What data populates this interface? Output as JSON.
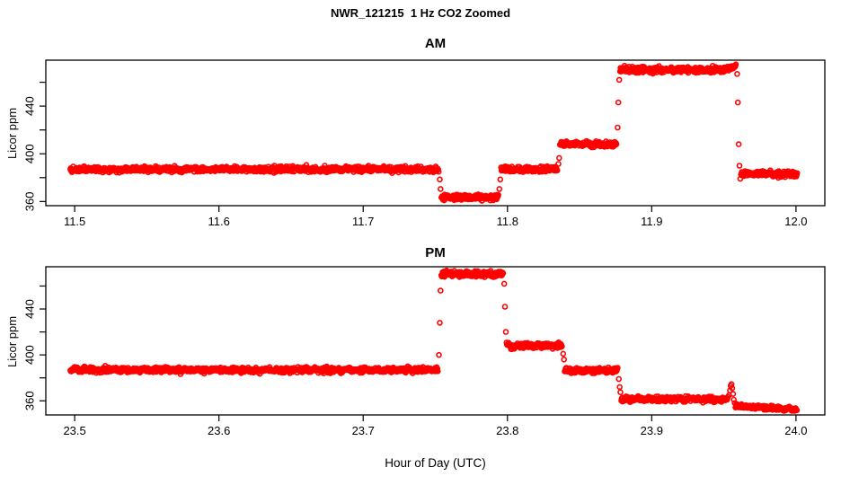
{
  "title": "NWR_121215  1 Hz CO2 Zoomed",
  "xlabel": "Hour of Day (UTC)",
  "colors": {
    "points": "#FF0000",
    "axis": "#000000",
    "text": "#000000",
    "background": "#FFFFFF"
  },
  "chart_data": [
    {
      "type": "scatter",
      "panel": "AM",
      "title": "AM",
      "ylabel": "Licor ppm",
      "marker": "open-circle",
      "sample_rate_hz": 1,
      "grid": false,
      "xlim": [
        11.48,
        12.02
      ],
      "ylim": [
        356.5,
        478.5
      ],
      "xticks": [
        11.5,
        11.6,
        11.7,
        11.8,
        11.9,
        12.0
      ],
      "xtick_labels": [
        "11.5",
        "11.6",
        "11.7",
        "11.8",
        "11.9",
        "12.0"
      ],
      "yticks": [
        360,
        380,
        400,
        420,
        440,
        460
      ],
      "ytick_labels": [
        "360",
        "",
        "400",
        "",
        "440",
        ""
      ],
      "segments": [
        {
          "x0": 11.497,
          "x1": 11.7525,
          "level": 387,
          "noise": 1.1
        },
        {
          "x0": 11.7542,
          "x1": 11.7939,
          "level": 363.5,
          "noise": 1.1
        },
        {
          "x0": 11.7956,
          "x1": 11.8347,
          "level": 387,
          "noise": 1.1
        },
        {
          "x0": 11.8364,
          "x1": 11.8758,
          "level": 408,
          "noise": 1.1
        },
        {
          "x0": 11.8781,
          "x1": 11.95,
          "level": 470.5,
          "noise": 1.25
        },
        {
          "x0": 11.95,
          "x1": 11.9586,
          "level": 470.5,
          "level_end": 473.5,
          "noise": 1.0
        },
        {
          "x0": 11.9619,
          "x1": 12.001,
          "level": 383,
          "noise": 1.1
        }
      ],
      "transition_points": [
        [
          11.7531,
          378.5
        ],
        [
          11.7536,
          370.5
        ],
        [
          11.7944,
          370.5
        ],
        [
          11.795,
          378.5
        ],
        [
          11.8353,
          391.5
        ],
        [
          11.8358,
          396.5
        ],
        [
          11.8764,
          422
        ],
        [
          11.8769,
          443
        ],
        [
          11.8775,
          462
        ],
        [
          11.9592,
          467
        ],
        [
          11.9597,
          443
        ],
        [
          11.9603,
          408
        ],
        [
          11.9608,
          390
        ],
        [
          11.9614,
          379
        ]
      ]
    },
    {
      "type": "scatter",
      "panel": "PM",
      "title": "PM",
      "ylabel": "Licor ppm",
      "marker": "open-circle",
      "sample_rate_hz": 1,
      "grid": false,
      "xlim": [
        23.48,
        24.02
      ],
      "ylim": [
        347.7,
        476.8
      ],
      "xticks": [
        23.5,
        23.6,
        23.7,
        23.8,
        23.9,
        24.0
      ],
      "xtick_labels": [
        "23.5",
        "23.6",
        "23.7",
        "23.8",
        "23.9",
        "24.0"
      ],
      "yticks": [
        360,
        380,
        400,
        420,
        440,
        460
      ],
      "ytick_labels": [
        "360",
        "",
        "400",
        "",
        "440",
        ""
      ],
      "segments": [
        {
          "x0": 23.497,
          "x1": 23.7519,
          "level": 387,
          "noise": 1.1
        },
        {
          "x0": 23.7542,
          "x1": 23.7972,
          "level": 470.5,
          "noise": 1.25
        },
        {
          "x0": 23.7994,
          "x1": 23.8381,
          "level": 408,
          "noise": 1.1
        },
        {
          "x0": 23.8397,
          "x1": 23.8767,
          "level": 386.5,
          "noise": 1.1
        },
        {
          "x0": 23.8789,
          "x1": 23.9531,
          "level": 361.5,
          "noise": 1.1
        },
        {
          "x0": 23.9581,
          "x1": 24.001,
          "level": 355.5,
          "level_end": 352.5,
          "noise": 0.9
        }
      ],
      "transition_points": [
        [
          23.7525,
          400
        ],
        [
          23.7531,
          428
        ],
        [
          23.7536,
          456
        ],
        [
          23.7978,
          462
        ],
        [
          23.7983,
          442
        ],
        [
          23.7989,
          420
        ],
        [
          23.8386,
          401
        ],
        [
          23.8392,
          396
        ],
        [
          23.8772,
          379
        ],
        [
          23.8778,
          372
        ],
        [
          23.8783,
          367.5
        ],
        [
          23.9536,
          365
        ],
        [
          23.9542,
          369
        ],
        [
          23.9547,
          373
        ],
        [
          23.9553,
          374.5
        ],
        [
          23.9558,
          371
        ],
        [
          23.9564,
          366
        ],
        [
          23.9569,
          361
        ],
        [
          23.9575,
          358
        ]
      ]
    }
  ]
}
